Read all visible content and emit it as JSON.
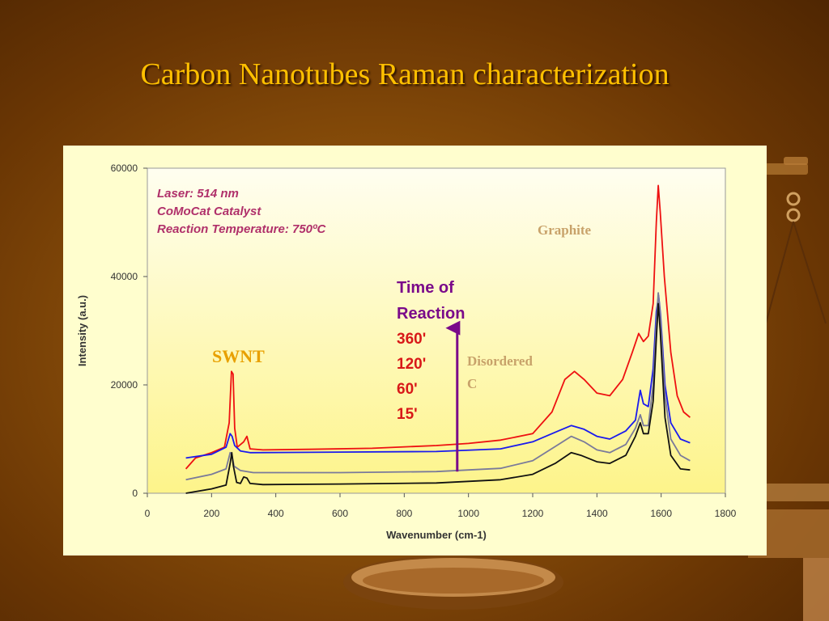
{
  "slide": {
    "title": "Carbon Nanotubes Raman characterization"
  },
  "colors": {
    "title": "#ffc000",
    "panel": "#fffece",
    "plot_top": "#fffef0",
    "plot_bottom": "#fdf48a",
    "arrow": "#7a0a8a"
  },
  "chart_data": {
    "type": "line",
    "xlabel": "Wavenumber (cm-1)",
    "ylabel": "Intensity (a.u.)",
    "xlim": [
      0,
      1800
    ],
    "ylim": [
      0,
      60000
    ],
    "x_ticks": [
      0,
      200,
      400,
      600,
      800,
      1000,
      1200,
      1400,
      1600,
      1800
    ],
    "y_ticks": [
      0,
      20000,
      40000,
      60000
    ],
    "grid": false,
    "conditions": [
      "Laser: 514 nm",
      "CoMoCat Catalyst",
      "Reaction Temperature: 750ºC"
    ],
    "time_legend": {
      "heading": [
        "Time of",
        "Reaction"
      ],
      "entries": [
        "360'",
        "120'",
        "60'",
        "15'"
      ]
    },
    "annotations": {
      "swnt": "SWNT",
      "graphite": "Graphite",
      "disordered": [
        "Disordered",
        "C"
      ]
    },
    "arrow": {
      "x": 965,
      "y_from": 4000,
      "y_to": 30500
    },
    "series": [
      {
        "color": "#ee1111",
        "points": [
          [
            120,
            4500
          ],
          [
            150,
            6500
          ],
          [
            200,
            7500
          ],
          [
            240,
            8500
          ],
          [
            255,
            13000
          ],
          [
            262,
            22500
          ],
          [
            267,
            22000
          ],
          [
            272,
            12000
          ],
          [
            280,
            8500
          ],
          [
            300,
            9500
          ],
          [
            310,
            10500
          ],
          [
            320,
            8200
          ],
          [
            360,
            8000
          ],
          [
            500,
            8100
          ],
          [
            700,
            8300
          ],
          [
            900,
            8800
          ],
          [
            1000,
            9200
          ],
          [
            1100,
            9800
          ],
          [
            1200,
            11000
          ],
          [
            1260,
            15000
          ],
          [
            1300,
            21000
          ],
          [
            1330,
            22500
          ],
          [
            1360,
            21000
          ],
          [
            1400,
            18500
          ],
          [
            1440,
            18000
          ],
          [
            1480,
            21000
          ],
          [
            1510,
            26000
          ],
          [
            1530,
            29500
          ],
          [
            1545,
            28000
          ],
          [
            1560,
            29000
          ],
          [
            1575,
            35000
          ],
          [
            1585,
            50000
          ],
          [
            1591,
            56800
          ],
          [
            1597,
            52000
          ],
          [
            1610,
            40000
          ],
          [
            1630,
            26000
          ],
          [
            1650,
            18000
          ],
          [
            1670,
            15000
          ],
          [
            1690,
            14000
          ]
        ]
      },
      {
        "color": "#1a1aee",
        "points": [
          [
            120,
            6500
          ],
          [
            200,
            7200
          ],
          [
            245,
            8500
          ],
          [
            258,
            11000
          ],
          [
            264,
            10500
          ],
          [
            272,
            8800
          ],
          [
            290,
            7800
          ],
          [
            320,
            7500
          ],
          [
            600,
            7600
          ],
          [
            900,
            7700
          ],
          [
            1100,
            8200
          ],
          [
            1200,
            9500
          ],
          [
            1280,
            11500
          ],
          [
            1320,
            12500
          ],
          [
            1360,
            11800
          ],
          [
            1400,
            10500
          ],
          [
            1440,
            10000
          ],
          [
            1490,
            11500
          ],
          [
            1520,
            13500
          ],
          [
            1535,
            19000
          ],
          [
            1545,
            16500
          ],
          [
            1560,
            16000
          ],
          [
            1575,
            23000
          ],
          [
            1585,
            33500
          ],
          [
            1592,
            36500
          ],
          [
            1598,
            33000
          ],
          [
            1612,
            20000
          ],
          [
            1630,
            13000
          ],
          [
            1660,
            10000
          ],
          [
            1690,
            9300
          ]
        ]
      },
      {
        "color": "#7a7a9a",
        "points": [
          [
            120,
            2500
          ],
          [
            200,
            3500
          ],
          [
            245,
            4500
          ],
          [
            258,
            7500
          ],
          [
            263,
            7200
          ],
          [
            270,
            5000
          ],
          [
            290,
            4200
          ],
          [
            330,
            3800
          ],
          [
            600,
            3800
          ],
          [
            900,
            4000
          ],
          [
            1100,
            4600
          ],
          [
            1200,
            6000
          ],
          [
            1280,
            9000
          ],
          [
            1320,
            10500
          ],
          [
            1360,
            9500
          ],
          [
            1400,
            8000
          ],
          [
            1440,
            7500
          ],
          [
            1490,
            9000
          ],
          [
            1520,
            12000
          ],
          [
            1535,
            14500
          ],
          [
            1545,
            12500
          ],
          [
            1560,
            12500
          ],
          [
            1575,
            20000
          ],
          [
            1585,
            31500
          ],
          [
            1591,
            37000
          ],
          [
            1597,
            33000
          ],
          [
            1612,
            18000
          ],
          [
            1630,
            10000
          ],
          [
            1660,
            7000
          ],
          [
            1690,
            6000
          ]
        ]
      },
      {
        "color": "#111111",
        "points": [
          [
            120,
            0
          ],
          [
            200,
            800
          ],
          [
            245,
            1500
          ],
          [
            258,
            5500
          ],
          [
            263,
            7500
          ],
          [
            268,
            5000
          ],
          [
            278,
            2000
          ],
          [
            290,
            1800
          ],
          [
            300,
            3000
          ],
          [
            310,
            2800
          ],
          [
            320,
            1800
          ],
          [
            360,
            1600
          ],
          [
            600,
            1700
          ],
          [
            900,
            1900
          ],
          [
            1100,
            2500
          ],
          [
            1200,
            3500
          ],
          [
            1270,
            5500
          ],
          [
            1320,
            7500
          ],
          [
            1350,
            7000
          ],
          [
            1400,
            5800
          ],
          [
            1440,
            5500
          ],
          [
            1490,
            7000
          ],
          [
            1520,
            10500
          ],
          [
            1535,
            13000
          ],
          [
            1545,
            11000
          ],
          [
            1560,
            11000
          ],
          [
            1575,
            17000
          ],
          [
            1585,
            28500
          ],
          [
            1591,
            35000
          ],
          [
            1597,
            30000
          ],
          [
            1612,
            14000
          ],
          [
            1630,
            7000
          ],
          [
            1660,
            4500
          ],
          [
            1690,
            4300
          ]
        ]
      }
    ]
  }
}
